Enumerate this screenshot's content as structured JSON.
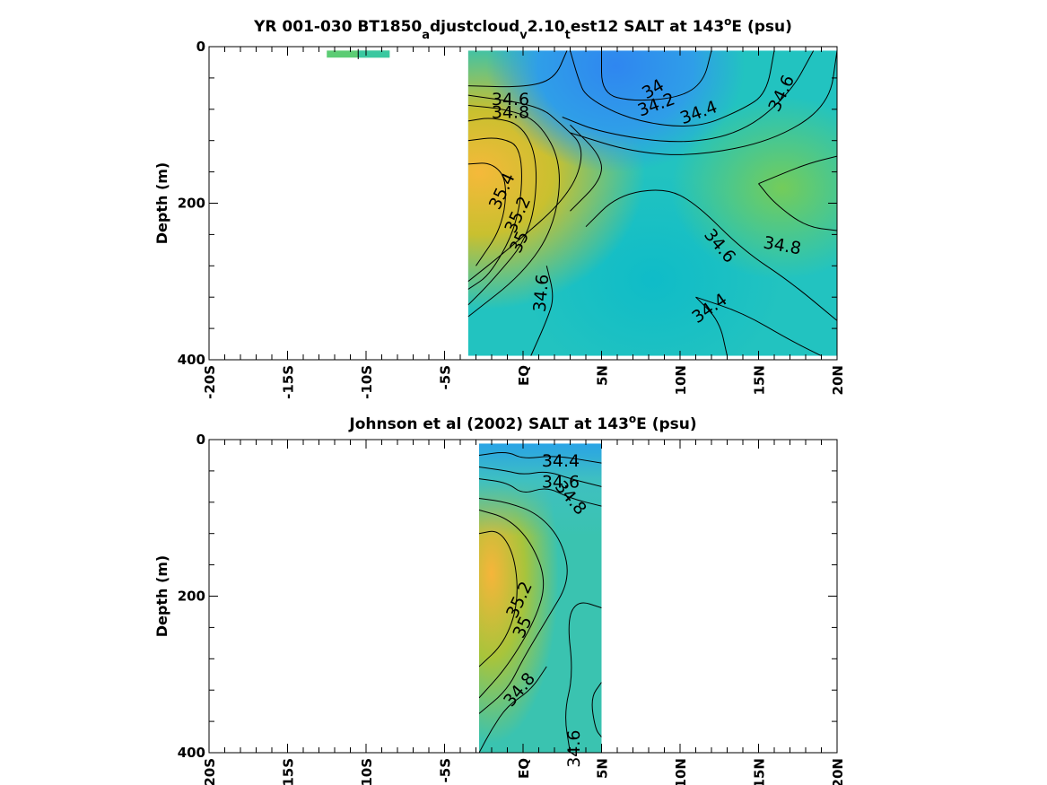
{
  "chart_data": [
    {
      "type": "heatmap",
      "title_parts": [
        {
          "text": "YR 001-030 BT1850",
          "sub": false
        },
        {
          "text": "a",
          "sub": true
        },
        {
          "text": "djustcloud",
          "sub": false
        },
        {
          "text": "v",
          "sub": true
        },
        {
          "text": "2.10",
          "sub": false
        },
        {
          "text": "t",
          "sub": true
        },
        {
          "text": "est12 SALT at 143",
          "sub": false
        },
        {
          "text": "o",
          "sup": true
        },
        {
          "text": "E (psu)",
          "sub": false
        }
      ],
      "ylabel": "Depth (m)",
      "x_ticks": [
        -20,
        -15,
        -10,
        -5,
        0,
        5,
        10,
        15,
        20
      ],
      "x_tick_labels": [
        "-20S",
        "-15S",
        "-10S",
        "-5S",
        "EQ",
        "5N",
        "10N",
        "15N",
        "20N"
      ],
      "y_ticks": [
        0,
        200,
        400
      ],
      "y_tick_labels": [
        "0",
        "200",
        "400"
      ],
      "xlim": [
        -20,
        20
      ],
      "ylim": [
        400,
        0
      ],
      "data_extent": {
        "lat": [
          -3.5,
          20
        ],
        "depth": [
          5,
          395
        ]
      },
      "color_range": [
        33.8,
        35.6
      ],
      "contour_labels": [
        {
          "text": "34.6",
          "lat": -0.8,
          "depth": 68,
          "angle": 0
        },
        {
          "text": "34.8",
          "lat": -0.8,
          "depth": 85,
          "angle": 0
        },
        {
          "text": "34",
          "lat": 8.3,
          "depth": 55,
          "angle": -30
        },
        {
          "text": "34.2",
          "lat": 8.5,
          "depth": 75,
          "angle": -20
        },
        {
          "text": "34.4",
          "lat": 11.2,
          "depth": 85,
          "angle": -20
        },
        {
          "text": "34.6",
          "lat": 16.5,
          "depth": 60,
          "angle": -65
        },
        {
          "text": "35.4",
          "lat": -1.3,
          "depth": 185,
          "angle": -65
        },
        {
          "text": "35.2",
          "lat": -0.3,
          "depth": 215,
          "angle": -65
        },
        {
          "text": "35",
          "lat": -0.2,
          "depth": 250,
          "angle": -65
        },
        {
          "text": "34.6",
          "lat": 1.2,
          "depth": 315,
          "angle": -85
        },
        {
          "text": "34.6",
          "lat": 12.5,
          "depth": 255,
          "angle": 50
        },
        {
          "text": "34.8",
          "lat": 16.5,
          "depth": 255,
          "angle": 10
        },
        {
          "text": "34.4",
          "lat": 11.9,
          "depth": 335,
          "angle": -35
        }
      ]
    },
    {
      "type": "heatmap",
      "title_parts": [
        {
          "text": "Johnson et al (2002) SALT at 143",
          "sub": false
        },
        {
          "text": "o",
          "sup": true
        },
        {
          "text": "E (psu)",
          "sub": false
        }
      ],
      "ylabel": "Depth (m)",
      "x_ticks": [
        -20,
        -15,
        -10,
        -5,
        0,
        5,
        10,
        15,
        20
      ],
      "x_tick_labels": [
        "-20S",
        "-15S",
        "-10S",
        "-5S",
        "EQ",
        "5N",
        "10N",
        "15N",
        "20N"
      ],
      "y_ticks": [
        0,
        200,
        400
      ],
      "y_tick_labels": [
        "0",
        "200",
        "400"
      ],
      "xlim": [
        -20,
        20
      ],
      "ylim": [
        400,
        0
      ],
      "data_extent": {
        "lat": [
          -2.8,
          5
        ],
        "depth": [
          5,
          400
        ]
      },
      "color_range": [
        33.8,
        35.6
      ],
      "contour_labels": [
        {
          "text": "34.4",
          "lat": 2.4,
          "depth": 28,
          "angle": 0
        },
        {
          "text": "34.6",
          "lat": 2.4,
          "depth": 55,
          "angle": 0
        },
        {
          "text": "34.8",
          "lat": 3.0,
          "depth": 75,
          "angle": 50
        },
        {
          "text": "35.2",
          "lat": -0.2,
          "depth": 205,
          "angle": -65
        },
        {
          "text": "35",
          "lat": 0.0,
          "depth": 240,
          "angle": -65
        },
        {
          "text": "34.8",
          "lat": -0.2,
          "depth": 320,
          "angle": -50
        },
        {
          "text": "34.6",
          "lat": 3.3,
          "depth": 395,
          "angle": -90
        }
      ]
    }
  ]
}
